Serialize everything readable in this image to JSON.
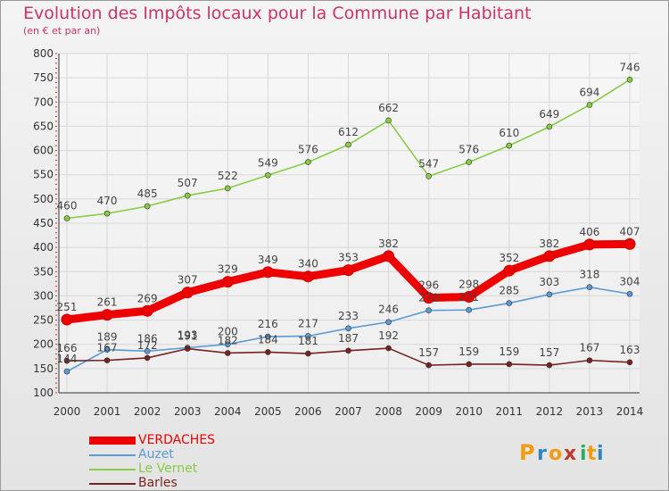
{
  "chart_data": {
    "type": "line",
    "title": "Evolution des Impôts locaux pour la Commune par Habitant",
    "subtitle": "(en € et par an)",
    "xlabel": "",
    "ylabel": "",
    "ylim": [
      100,
      800
    ],
    "yticks": [
      "100",
      "150",
      "200",
      "250",
      "300",
      "350",
      "400",
      "450",
      "500",
      "550",
      "600",
      "650",
      "700",
      "750",
      "800"
    ],
    "x": [
      "2000",
      "2001",
      "2002",
      "2003",
      "2004",
      "2005",
      "2006",
      "2007",
      "2008",
      "2009",
      "2010",
      "2011",
      "2012",
      "2013",
      "2014"
    ],
    "grid": true,
    "legend_position": "bottom-left",
    "series": [
      {
        "name": "VERDACHES",
        "color": "#ee0000",
        "values": [
          251,
          261,
          269,
          307,
          329,
          349,
          340,
          353,
          382,
          296,
          298,
          352,
          382,
          406,
          407
        ],
        "labels": [
          "251",
          "261",
          "269",
          "307",
          "329",
          "349",
          "340",
          "353",
          "382",
          "296",
          "298",
          "352",
          "382",
          "406",
          "407"
        ]
      },
      {
        "name": "Auzet",
        "color": "#5b9bd5",
        "values": [
          144,
          189,
          186,
          193,
          200,
          216,
          217,
          233,
          246,
          270,
          271,
          285,
          303,
          318,
          304
        ],
        "labels": [
          "144",
          "189",
          "186",
          "193",
          "200",
          "216",
          "217",
          "233",
          "246",
          "270",
          "271",
          "285",
          "303",
          "318",
          "304"
        ]
      },
      {
        "name": "Le Vernet",
        "color": "#88cc44",
        "values": [
          460,
          470,
          485,
          507,
          522,
          549,
          576,
          612,
          662,
          547,
          576,
          610,
          649,
          694,
          746
        ],
        "labels": [
          "460",
          "470",
          "485",
          "507",
          "522",
          "549",
          "576",
          "612",
          "662",
          "547",
          "576",
          "610",
          "649",
          "694",
          "746"
        ]
      },
      {
        "name": "Barles",
        "color": "#772222",
        "values": [
          166,
          167,
          172,
          191,
          182,
          184,
          181,
          187,
          192,
          157,
          159,
          159,
          157,
          167,
          163
        ],
        "labels": [
          "166",
          "167",
          "172",
          "191",
          "182",
          "184",
          "181",
          "187",
          "192",
          "157",
          "159",
          "159",
          "157",
          "167",
          "163"
        ]
      }
    ]
  },
  "logo": {
    "letters": [
      "P",
      "r",
      "o",
      "x",
      "i",
      "t",
      "i"
    ],
    "colors": [
      "#f39c12",
      "#2e86c1",
      "#f39c12",
      "#c0392b",
      "#27ae60",
      "#f39c12",
      "#2e86c1"
    ]
  }
}
